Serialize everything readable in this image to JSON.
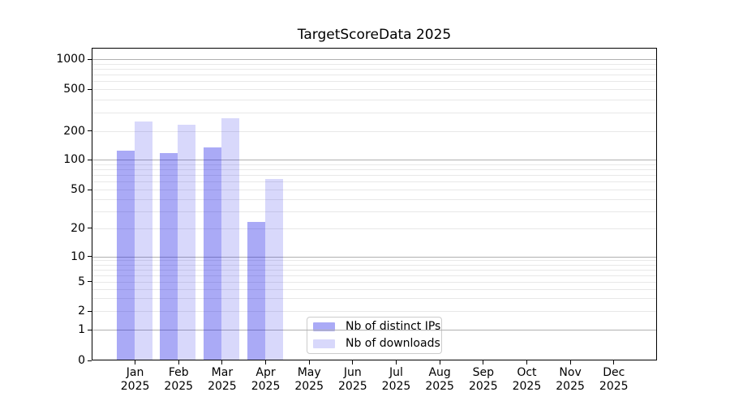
{
  "chart_data": {
    "type": "bar",
    "title": "TargetScoreData 2025",
    "categories": [
      "Jan",
      "Feb",
      "Mar",
      "Apr",
      "May",
      "Jun",
      "Jul",
      "Aug",
      "Sep",
      "Oct",
      "Nov",
      "Dec"
    ],
    "x_tick_line2": "2025",
    "series": [
      {
        "name": "Nb of distinct IPs",
        "color": "rgba(25,25,230,0.37)",
        "visible_color": "#aaaaf6",
        "values": [
          123,
          117,
          134,
          23,
          0,
          0,
          0,
          0,
          0,
          0,
          0,
          0
        ]
      },
      {
        "name": "Nb of downloads",
        "color": "rgba(25,25,230,0.17)",
        "visible_color": "#d9d9f9",
        "values": [
          244,
          230,
          266,
          64,
          0,
          0,
          0,
          0,
          0,
          0,
          0,
          0
        ]
      }
    ],
    "y_axis": {
      "ticks": [
        1000,
        500,
        200,
        100,
        50,
        20,
        10,
        5,
        2,
        1,
        0
      ],
      "scale": "symlog",
      "ylim": [
        0,
        1250
      ]
    },
    "legend": {
      "entries": [
        "Nb of distinct IPs",
        "Nb of downloads"
      ],
      "position": "lower center"
    },
    "grid": {
      "orientation": "horizontal",
      "major_color": "#b0b0b0",
      "minor_color": "#e8e8e8"
    }
  }
}
